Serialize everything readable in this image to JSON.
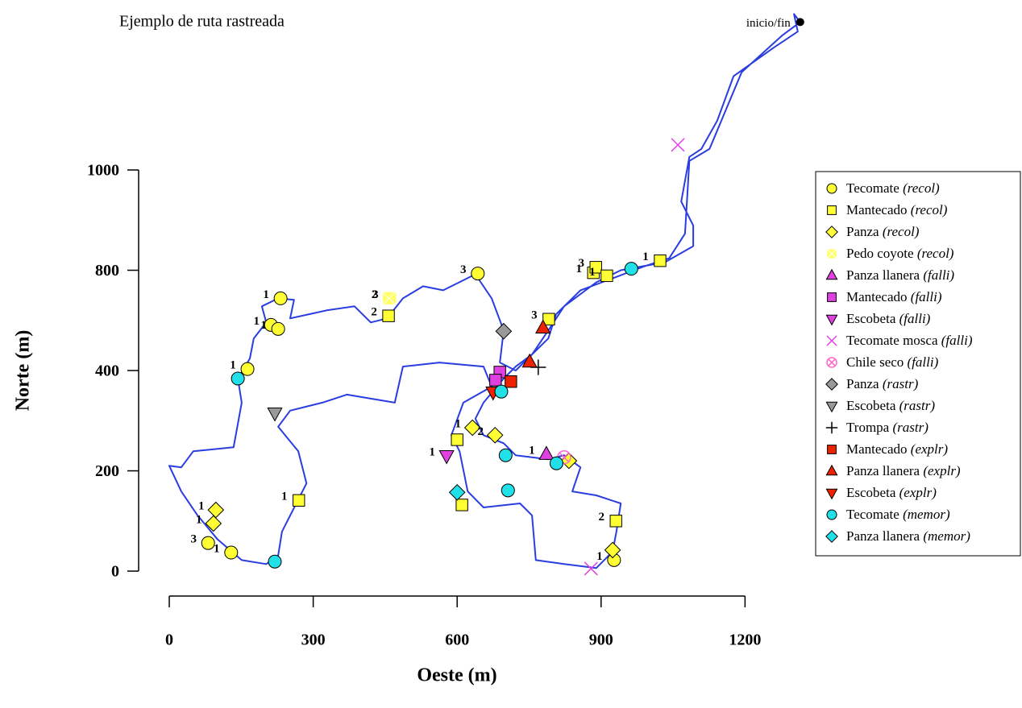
{
  "chart_data": {
    "type": "scatter",
    "title": "Ejemplo de ruta rastreada",
    "xlabel": "Oeste (m)",
    "ylabel": "Norte (m)",
    "xlim": [
      -60,
      1340
    ],
    "ylim": [
      -20,
      1300
    ],
    "xticks": [
      0,
      300,
      600,
      900,
      1200
    ],
    "yticks": [
      0,
      200,
      400,
      800,
      1000
    ],
    "legend": "right",
    "track": {
      "color": "#2a3de0",
      "x": [
        1315,
        1302,
        1310,
        1260,
        1176,
        1142,
        1109,
        1084,
        1067,
        1092,
        1092,
        1033,
        941,
        890,
        823,
        790,
        756,
        722,
        697,
        655,
        638,
        655,
        697,
        722,
        790,
        823,
        857,
        840,
        890,
        941,
        932,
        924,
        890,
        823,
        764,
        756,
        731,
        655,
        622,
        605,
        588,
        613,
        672,
        655,
        563,
        487,
        470,
        370,
        319,
        252,
        227,
        269,
        286,
        235,
        227,
        202,
        151,
        101,
        59,
        25,
        0,
        25,
        50,
        134,
        151,
        143,
        168,
        176,
        202,
        193,
        227,
        260,
        252,
        328,
        386,
        420,
        454,
        487,
        529,
        571,
        638,
        672,
        697,
        689,
        722,
        790,
        806,
        857,
        924,
        991,
        1042,
        1075,
        1084,
        1126,
        1193,
        1277,
        1315
      ],
      "y": [
        1295,
        1311,
        1276,
        1244,
        1187,
        1098,
        1042,
        1026,
        937,
        889,
        848,
        816,
        800,
        752,
        656,
        560,
        464,
        416,
        384,
        336,
        304,
        271,
        255,
        231,
        223,
        231,
        207,
        159,
        151,
        135,
        79,
        39,
        6,
        14,
        22,
        111,
        135,
        127,
        159,
        239,
        271,
        336,
        368,
        416,
        432,
        416,
        336,
        352,
        336,
        320,
        288,
        239,
        175,
        79,
        31,
        14,
        22,
        63,
        111,
        159,
        210,
        207,
        239,
        247,
        336,
        384,
        448,
        528,
        592,
        656,
        688,
        682,
        608,
        640,
        656,
        592,
        608,
        688,
        736,
        720,
        784,
        688,
        560,
        432,
        400,
        528,
        624,
        720,
        768,
        808,
        824,
        873,
        1018,
        1042,
        1195,
        1268,
        1295
      ]
    },
    "start": {
      "label": "inicio/fin",
      "x": 1315,
      "y": 1295
    },
    "series": [
      {
        "name": "Tecomate (recol)",
        "color": "#ffff33",
        "marker": "circle",
        "x": [
          232,
          212,
          227,
          163,
          81,
          129,
          927,
          643
        ],
        "y": [
          688,
          582,
          566,
          406,
          56,
          37,
          22,
          787
        ],
        "labels": [
          "1",
          "1",
          "1",
          "1",
          "3",
          "1",
          "1",
          "3"
        ]
      },
      {
        "name": "Mantecado (recol)",
        "color": "#ffff33",
        "marker": "square",
        "x": [
          270,
          457,
          884,
          889,
          912,
          1023,
          791,
          600,
          610,
          931
        ],
        "y": [
          141,
          618,
          790,
          806,
          778,
          819,
          605,
          262,
          132,
          100
        ],
        "labels": [
          "1",
          "2",
          "1",
          "3",
          "1",
          "1",
          "3",
          null,
          null,
          "2"
        ]
      },
      {
        "name": "Panza (recol)",
        "color": "#ffff33",
        "marker": "diamond",
        "x": [
          97,
          92,
          632,
          679,
          833,
          924
        ],
        "y": [
          122,
          95,
          286,
          271,
          220,
          42
        ],
        "labels": [
          "1",
          "1",
          "1",
          "2",
          null,
          null
        ]
      },
      {
        "name": "Pedo coyote (recol)",
        "color": "#ffff66",
        "marker": "square-x",
        "x": [
          460,
          458
        ],
        "y": [
          688,
          688
        ],
        "labels": [
          "3",
          "2"
        ]
      },
      {
        "name": "Panza llanera (falli)",
        "color": "#e040e0",
        "marker": "triangle",
        "x": [
          786
        ],
        "y": [
          233
        ],
        "labels": [
          "1"
        ]
      },
      {
        "name": "Mantecado (falli)",
        "color": "#e040e0",
        "marker": "square",
        "x": [
          689,
          680
        ],
        "y": [
          397,
          381
        ],
        "labels": [
          null,
          null
        ]
      },
      {
        "name": "Escobeta (falli)",
        "color": "#e040e0",
        "marker": "triangle-down",
        "x": [
          578
        ],
        "y": [
          230
        ],
        "labels": [
          "1"
        ]
      },
      {
        "name": "Tecomate mosca (falli)",
        "color": "#e040e0",
        "marker": "x",
        "x": [
          1060,
          879
        ],
        "y": [
          1050,
          5
        ],
        "labels": [
          null,
          null
        ]
      },
      {
        "name": "Chile seco (falli)",
        "color": "#ff66cc",
        "marker": "circle-x",
        "x": [
          823
        ],
        "y": [
          227
        ],
        "labels": [
          null
        ]
      },
      {
        "name": "Panza (rastr)",
        "color": "#999999",
        "marker": "diamond",
        "x": [
          697
        ],
        "y": [
          557
        ],
        "labels": [
          null
        ]
      },
      {
        "name": "Escobeta (rastr)",
        "color": "#999999",
        "marker": "triangle-down",
        "x": [
          220
        ],
        "y": [
          315
        ],
        "labels": [
          null
        ]
      },
      {
        "name": "Trompa (rastr)",
        "color": "#000000",
        "marker": "plus",
        "x": [
          769
        ],
        "y": [
          413
        ],
        "labels": [
          null
        ]
      },
      {
        "name": "Mantecado (explr)",
        "color": "#ee2200",
        "marker": "square",
        "x": [
          712
        ],
        "y": [
          378
        ],
        "labels": [
          null
        ]
      },
      {
        "name": "Panza llanera (explr)",
        "color": "#ee2200",
        "marker": "triangle",
        "x": [
          779,
          751
        ],
        "y": [
          570,
          434
        ],
        "labels": [
          null,
          null
        ]
      },
      {
        "name": "Escobeta (explr)",
        "color": "#ee2200",
        "marker": "triangle-down",
        "x": [
          675
        ],
        "y": [
          357
        ],
        "labels": [
          null
        ]
      },
      {
        "name": "Tecomate (memor)",
        "color": "#22e0e8",
        "marker": "circle",
        "x": [
          963,
          143,
          220,
          701,
          807,
          706,
          692
        ],
        "y": [
          803,
          384,
          19,
          231,
          215,
          161,
          358
        ],
        "labels": [
          null,
          null,
          null,
          null,
          null,
          null,
          null
        ]
      },
      {
        "name": "Panza llanera (memor)",
        "color": "#22e0e8",
        "marker": "diamond",
        "x": [
          600
        ],
        "y": [
          157
        ],
        "labels": [
          null
        ]
      }
    ]
  }
}
